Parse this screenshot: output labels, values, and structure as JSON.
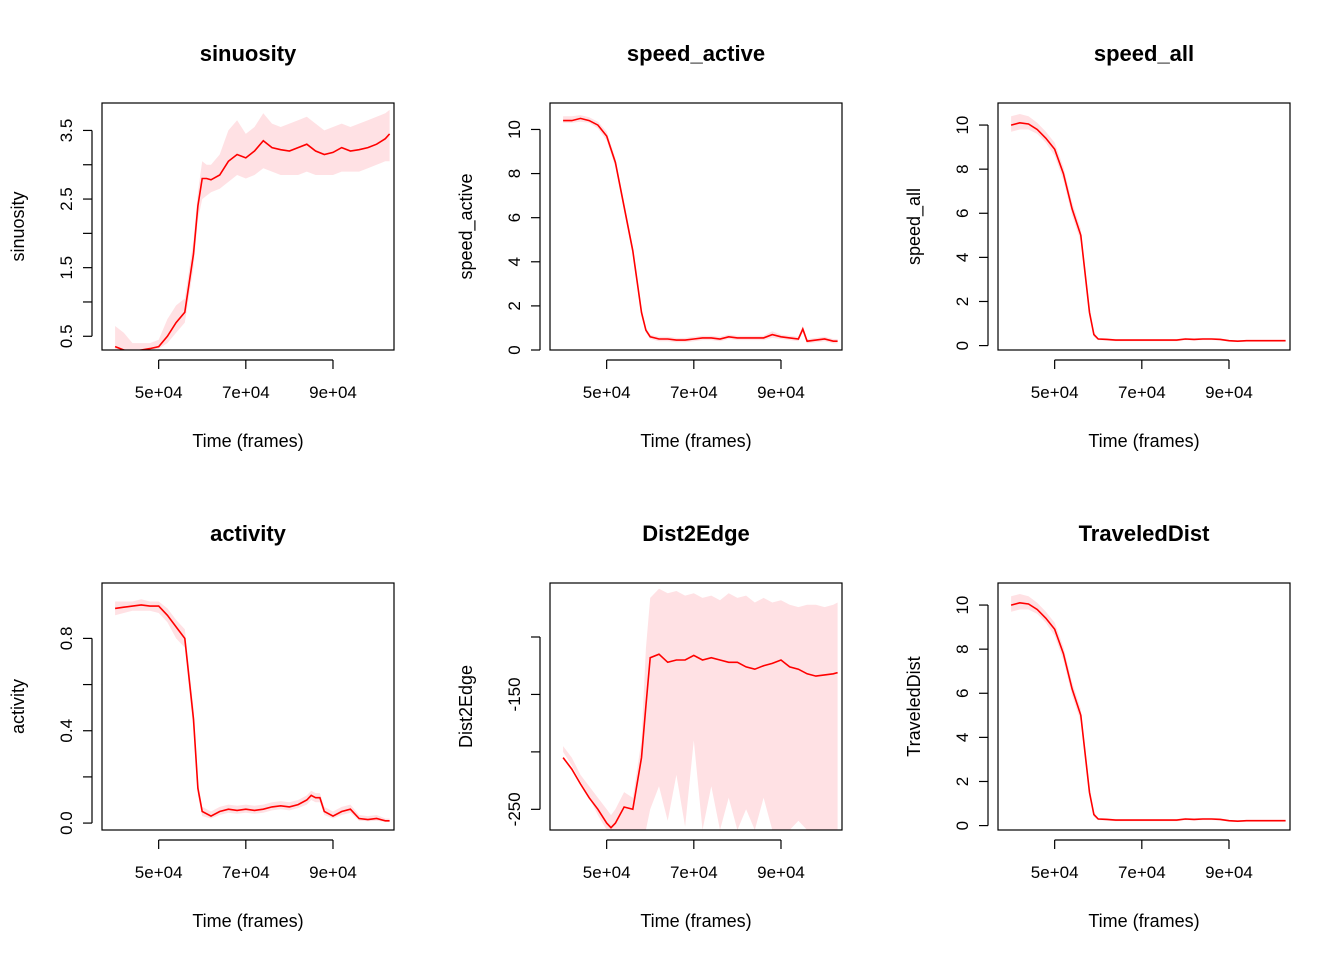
{
  "colors": {
    "line": "#ff0000",
    "band": "#ffe1e4",
    "axis": "#000000"
  },
  "chart_data": [
    {
      "type": "line",
      "title": "sinuosity",
      "xlabel": "Time (frames)",
      "ylabel": "sinuosity",
      "xlim": [
        37000,
        104000
      ],
      "ylim": [
        0.3,
        3.9
      ],
      "x_ticks": [
        50000,
        70000,
        90000
      ],
      "x_tick_labels": [
        "5e+04",
        "7e+04",
        "9e+04"
      ],
      "y_ticks": [
        0.5,
        1.0,
        1.5,
        2.0,
        2.5,
        3.0,
        3.5
      ],
      "y_tick_labels": [
        "0.5",
        "",
        "1.5",
        "",
        "2.5",
        "",
        "3.5"
      ],
      "x": [
        40000,
        42000,
        44000,
        46000,
        48000,
        50000,
        52000,
        54000,
        56000,
        58000,
        59000,
        60000,
        61000,
        62000,
        64000,
        66000,
        68000,
        70000,
        72000,
        74000,
        76000,
        78000,
        80000,
        82000,
        84000,
        86000,
        88000,
        90000,
        92000,
        94000,
        96000,
        98000,
        100000,
        102000,
        103000
      ],
      "y": [
        0.35,
        0.3,
        0.28,
        0.3,
        0.32,
        0.35,
        0.5,
        0.7,
        0.85,
        1.7,
        2.4,
        2.8,
        2.8,
        2.78,
        2.85,
        3.05,
        3.15,
        3.1,
        3.2,
        3.35,
        3.25,
        3.22,
        3.2,
        3.25,
        3.3,
        3.2,
        3.15,
        3.18,
        3.25,
        3.2,
        3.22,
        3.25,
        3.3,
        3.38,
        3.45
      ],
      "lower": [
        0.3,
        0.28,
        0.27,
        0.28,
        0.3,
        0.32,
        0.4,
        0.55,
        0.7,
        1.5,
        2.2,
        2.5,
        2.55,
        2.6,
        2.65,
        2.75,
        2.85,
        2.8,
        2.85,
        2.95,
        2.9,
        2.85,
        2.85,
        2.85,
        2.9,
        2.85,
        2.85,
        2.85,
        2.9,
        2.9,
        2.9,
        2.95,
        3.0,
        3.05,
        3.05
      ],
      "upper": [
        0.65,
        0.55,
        0.4,
        0.4,
        0.4,
        0.45,
        0.75,
        0.95,
        1.05,
        1.9,
        2.6,
        3.05,
        3.0,
        3.0,
        3.15,
        3.5,
        3.65,
        3.45,
        3.55,
        3.75,
        3.6,
        3.55,
        3.6,
        3.65,
        3.7,
        3.6,
        3.5,
        3.55,
        3.6,
        3.55,
        3.6,
        3.65,
        3.7,
        3.75,
        3.8
      ]
    },
    {
      "type": "line",
      "title": "speed_active",
      "xlabel": "Time (frames)",
      "ylabel": "speed_active",
      "xlim": [
        37000,
        104000
      ],
      "ylim": [
        0,
        11.2
      ],
      "x_ticks": [
        50000,
        70000,
        90000
      ],
      "x_tick_labels": [
        "5e+04",
        "7e+04",
        "9e+04"
      ],
      "y_ticks": [
        0,
        2,
        4,
        6,
        8,
        10
      ],
      "y_tick_labels": [
        "0",
        "2",
        "4",
        "6",
        "8",
        "10"
      ],
      "x": [
        40000,
        42000,
        44000,
        46000,
        48000,
        50000,
        52000,
        54000,
        56000,
        58000,
        59000,
        60000,
        61000,
        62000,
        64000,
        66000,
        68000,
        70000,
        72000,
        74000,
        76000,
        78000,
        80000,
        82000,
        84000,
        86000,
        88000,
        90000,
        92000,
        94000,
        95000,
        96000,
        98000,
        100000,
        102000,
        103000
      ],
      "y": [
        10.4,
        10.4,
        10.5,
        10.4,
        10.2,
        9.7,
        8.5,
        6.5,
        4.5,
        1.7,
        0.9,
        0.6,
        0.55,
        0.5,
        0.5,
        0.45,
        0.45,
        0.5,
        0.55,
        0.55,
        0.5,
        0.6,
        0.55,
        0.55,
        0.55,
        0.55,
        0.7,
        0.6,
        0.55,
        0.5,
        0.95,
        0.4,
        0.45,
        0.5,
        0.4,
        0.4
      ],
      "lower": [
        10.3,
        10.3,
        10.35,
        10.3,
        10.05,
        9.5,
        8.3,
        6.3,
        4.3,
        1.5,
        0.8,
        0.5,
        0.45,
        0.4,
        0.4,
        0.35,
        0.35,
        0.4,
        0.45,
        0.45,
        0.4,
        0.5,
        0.45,
        0.45,
        0.45,
        0.45,
        0.55,
        0.5,
        0.45,
        0.4,
        0.8,
        0.3,
        0.35,
        0.4,
        0.3,
        0.3
      ],
      "upper": [
        10.6,
        10.6,
        10.65,
        10.55,
        10.35,
        9.9,
        8.7,
        6.7,
        4.7,
        1.9,
        1.0,
        0.7,
        0.65,
        0.6,
        0.6,
        0.55,
        0.55,
        0.6,
        0.65,
        0.65,
        0.6,
        0.7,
        0.65,
        0.65,
        0.65,
        0.65,
        0.85,
        0.7,
        0.65,
        0.6,
        1.1,
        0.5,
        0.55,
        0.6,
        0.5,
        0.5
      ]
    },
    {
      "type": "line",
      "title": "speed_all",
      "xlabel": "Time (frames)",
      "ylabel": "speed_all",
      "xlim": [
        37000,
        104000
      ],
      "ylim": [
        -0.2,
        11.0
      ],
      "x_ticks": [
        50000,
        70000,
        90000
      ],
      "x_tick_labels": [
        "5e+04",
        "7e+04",
        "9e+04"
      ],
      "y_ticks": [
        0,
        2,
        4,
        6,
        8,
        10
      ],
      "y_tick_labels": [
        "0",
        "2",
        "4",
        "6",
        "8",
        "10"
      ],
      "x": [
        40000,
        42000,
        44000,
        46000,
        48000,
        50000,
        52000,
        54000,
        56000,
        58000,
        59000,
        60000,
        62000,
        64000,
        66000,
        68000,
        70000,
        72000,
        74000,
        76000,
        78000,
        80000,
        82000,
        84000,
        86000,
        88000,
        90000,
        92000,
        94000,
        96000,
        98000,
        100000,
        102000,
        103000
      ],
      "y": [
        10.0,
        10.1,
        10.05,
        9.8,
        9.4,
        8.9,
        7.8,
        6.2,
        5.0,
        1.5,
        0.5,
        0.3,
        0.28,
        0.25,
        0.25,
        0.25,
        0.25,
        0.25,
        0.25,
        0.25,
        0.25,
        0.3,
        0.28,
        0.3,
        0.3,
        0.28,
        0.22,
        0.2,
        0.22,
        0.22,
        0.22,
        0.22,
        0.22,
        0.22
      ],
      "lower": [
        9.7,
        9.8,
        9.8,
        9.6,
        9.2,
        8.6,
        7.5,
        5.9,
        4.7,
        1.3,
        0.4,
        0.25,
        0.23,
        0.2,
        0.2,
        0.2,
        0.2,
        0.2,
        0.2,
        0.2,
        0.2,
        0.25,
        0.23,
        0.25,
        0.25,
        0.23,
        0.18,
        0.16,
        0.18,
        0.18,
        0.18,
        0.18,
        0.18,
        0.18
      ],
      "upper": [
        10.4,
        10.5,
        10.4,
        10.1,
        9.7,
        9.2,
        8.1,
        6.5,
        5.3,
        1.8,
        0.6,
        0.35,
        0.33,
        0.3,
        0.3,
        0.3,
        0.3,
        0.3,
        0.3,
        0.3,
        0.3,
        0.35,
        0.33,
        0.35,
        0.35,
        0.33,
        0.26,
        0.24,
        0.26,
        0.26,
        0.26,
        0.26,
        0.26,
        0.26
      ]
    },
    {
      "type": "line",
      "title": "activity",
      "xlabel": "Time (frames)",
      "ylabel": "activity",
      "xlim": [
        37000,
        104000
      ],
      "ylim": [
        -0.03,
        1.04
      ],
      "x_ticks": [
        50000,
        70000,
        90000
      ],
      "x_tick_labels": [
        "5e+04",
        "7e+04",
        "9e+04"
      ],
      "y_ticks": [
        0.0,
        0.2,
        0.4,
        0.6,
        0.8
      ],
      "y_tick_labels": [
        "0.0",
        "",
        "0.4",
        "",
        "0.8"
      ],
      "x": [
        40000,
        42000,
        44000,
        46000,
        48000,
        50000,
        52000,
        54000,
        56000,
        58000,
        59000,
        60000,
        62000,
        64000,
        66000,
        68000,
        70000,
        72000,
        74000,
        76000,
        78000,
        80000,
        82000,
        84000,
        85000,
        86000,
        87000,
        88000,
        90000,
        92000,
        94000,
        96000,
        98000,
        100000,
        102000,
        103000
      ],
      "y": [
        0.93,
        0.935,
        0.94,
        0.945,
        0.94,
        0.94,
        0.9,
        0.85,
        0.8,
        0.45,
        0.15,
        0.05,
        0.03,
        0.05,
        0.06,
        0.055,
        0.06,
        0.055,
        0.06,
        0.07,
        0.075,
        0.07,
        0.08,
        0.1,
        0.12,
        0.11,
        0.11,
        0.05,
        0.03,
        0.05,
        0.06,
        0.02,
        0.015,
        0.02,
        0.01,
        0.01
      ],
      "lower": [
        0.9,
        0.91,
        0.92,
        0.92,
        0.92,
        0.91,
        0.87,
        0.8,
        0.76,
        0.4,
        0.12,
        0.03,
        0.02,
        0.035,
        0.045,
        0.04,
        0.045,
        0.04,
        0.045,
        0.055,
        0.06,
        0.055,
        0.065,
        0.08,
        0.1,
        0.09,
        0.09,
        0.035,
        0.02,
        0.035,
        0.045,
        0.01,
        0.008,
        0.01,
        0.005,
        0.005
      ],
      "upper": [
        0.96,
        0.96,
        0.96,
        0.97,
        0.96,
        0.96,
        0.93,
        0.88,
        0.84,
        0.5,
        0.18,
        0.07,
        0.05,
        0.07,
        0.08,
        0.075,
        0.08,
        0.075,
        0.08,
        0.09,
        0.095,
        0.09,
        0.1,
        0.12,
        0.14,
        0.13,
        0.13,
        0.07,
        0.05,
        0.07,
        0.08,
        0.035,
        0.03,
        0.035,
        0.02,
        0.02
      ]
    },
    {
      "type": "line",
      "title": "Dist2Edge",
      "xlabel": "Time (frames)",
      "ylabel": "Dist2Edge",
      "xlim": [
        37000,
        104000
      ],
      "ylim": [
        -268,
        -53
      ],
      "x_ticks": [
        50000,
        70000,
        90000
      ],
      "x_tick_labels": [
        "5e+04",
        "7e+04",
        "9e+04"
      ],
      "y_ticks": [
        -250,
        -200,
        -150,
        -100
      ],
      "y_tick_labels": [
        "-250",
        "",
        "-150",
        ""
      ],
      "x": [
        40000,
        42000,
        44000,
        46000,
        48000,
        50000,
        51000,
        52000,
        54000,
        56000,
        58000,
        59000,
        60000,
        62000,
        64000,
        66000,
        68000,
        70000,
        72000,
        74000,
        76000,
        78000,
        80000,
        82000,
        84000,
        86000,
        88000,
        90000,
        92000,
        94000,
        96000,
        98000,
        100000,
        102000,
        103000
      ],
      "y": [
        -205,
        -215,
        -228,
        -240,
        -250,
        -262,
        -266,
        -262,
        -248,
        -250,
        -205,
        -160,
        -118,
        -115,
        -122,
        -120,
        -120,
        -116,
        -120,
        -118,
        -120,
        -122,
        -122,
        -126,
        -128,
        -125,
        -123,
        -120,
        -126,
        -128,
        -132,
        -134,
        -133,
        -132,
        -131
      ],
      "lower": [
        -200,
        -212,
        -226,
        -240,
        -255,
        -268,
        -268,
        -268,
        -268,
        -268,
        -268,
        -268,
        -250,
        -230,
        -260,
        -220,
        -265,
        -190,
        -268,
        -230,
        -268,
        -240,
        -268,
        -250,
        -268,
        -240,
        -268,
        -268,
        -268,
        -260,
        -268,
        -268,
        -268,
        -268,
        -268
      ],
      "upper": [
        -195,
        -205,
        -220,
        -230,
        -240,
        -250,
        -255,
        -250,
        -235,
        -240,
        -190,
        -110,
        -66,
        -58,
        -62,
        -60,
        -64,
        -62,
        -66,
        -64,
        -68,
        -62,
        -66,
        -64,
        -70,
        -66,
        -70,
        -68,
        -72,
        -74,
        -72,
        -72,
        -74,
        -72,
        -70
      ]
    },
    {
      "type": "line",
      "title": "TraveledDist",
      "xlabel": "Time (frames)",
      "ylabel": "TraveledDist",
      "xlim": [
        37000,
        104000
      ],
      "ylim": [
        -0.2,
        11.0
      ],
      "x_ticks": [
        50000,
        70000,
        90000
      ],
      "x_tick_labels": [
        "5e+04",
        "7e+04",
        "9e+04"
      ],
      "y_ticks": [
        0,
        2,
        4,
        6,
        8,
        10
      ],
      "y_tick_labels": [
        "0",
        "2",
        "4",
        "6",
        "8",
        "10"
      ],
      "x": [
        40000,
        42000,
        44000,
        46000,
        48000,
        50000,
        52000,
        54000,
        56000,
        58000,
        59000,
        60000,
        62000,
        64000,
        66000,
        68000,
        70000,
        72000,
        74000,
        76000,
        78000,
        80000,
        82000,
        84000,
        86000,
        88000,
        90000,
        92000,
        94000,
        96000,
        98000,
        100000,
        102000,
        103000
      ],
      "y": [
        10.0,
        10.1,
        10.05,
        9.8,
        9.4,
        8.9,
        7.8,
        6.2,
        5.0,
        1.5,
        0.5,
        0.3,
        0.28,
        0.25,
        0.25,
        0.25,
        0.25,
        0.25,
        0.25,
        0.25,
        0.25,
        0.3,
        0.28,
        0.3,
        0.3,
        0.28,
        0.22,
        0.2,
        0.22,
        0.22,
        0.22,
        0.22,
        0.22,
        0.22
      ],
      "lower": [
        9.7,
        9.8,
        9.8,
        9.6,
        9.2,
        8.6,
        7.5,
        5.9,
        4.7,
        1.3,
        0.4,
        0.25,
        0.23,
        0.2,
        0.2,
        0.2,
        0.2,
        0.2,
        0.2,
        0.2,
        0.2,
        0.25,
        0.23,
        0.25,
        0.25,
        0.23,
        0.18,
        0.16,
        0.18,
        0.18,
        0.18,
        0.18,
        0.18,
        0.18
      ],
      "upper": [
        10.4,
        10.5,
        10.4,
        10.1,
        9.7,
        9.2,
        8.1,
        6.5,
        5.3,
        1.8,
        0.6,
        0.35,
        0.33,
        0.3,
        0.3,
        0.3,
        0.3,
        0.3,
        0.3,
        0.3,
        0.3,
        0.35,
        0.33,
        0.35,
        0.35,
        0.33,
        0.26,
        0.24,
        0.26,
        0.26,
        0.26,
        0.26,
        0.26,
        0.26
      ]
    }
  ]
}
